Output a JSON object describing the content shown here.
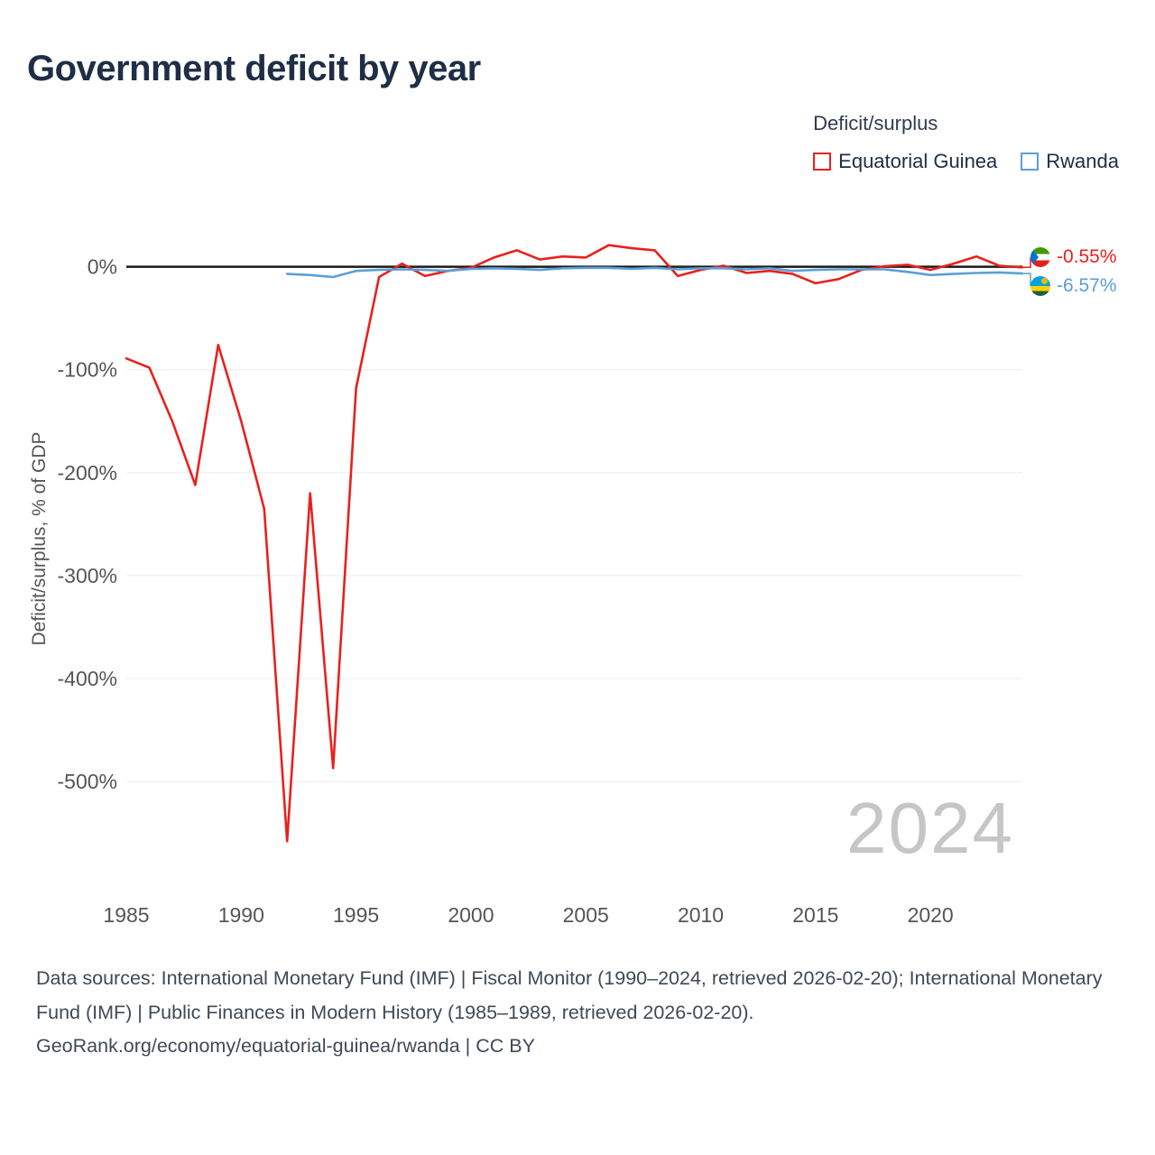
{
  "header": {
    "title": "Government deficit by year"
  },
  "footer": {
    "sources": "Data sources: International Monetary Fund (IMF) | Fiscal Monitor (1990–2024, retrieved 2026-02-20); International Monetary Fund (IMF) | Public Finances in Modern History (1985–1989, retrieved 2026-02-20).",
    "attribution": "GeoRank.org/economy/equatorial-guinea/rwanda | CC BY"
  },
  "chart_data": {
    "type": "line",
    "title": "Government deficit by year",
    "xlabel": "",
    "ylabel": "Deficit/surplus, % of GDP",
    "legend_title": "Deficit/surplus",
    "legend_position": "top-right",
    "grid": "horizontal",
    "watermark": "2024",
    "zero_line_color": "#1a1a1a",
    "grid_color": "#ececec",
    "tick_color": "#555555",
    "xlim": [
      1985,
      2024
    ],
    "ylim": [
      -620,
      40
    ],
    "x_ticks": [
      1985,
      1990,
      1995,
      2000,
      2005,
      2010,
      2015,
      2020
    ],
    "y_ticks": [
      {
        "value": 0,
        "label": "0%"
      },
      {
        "value": -100,
        "label": "-100%"
      },
      {
        "value": -200,
        "label": "-200%"
      },
      {
        "value": -300,
        "label": "-300%"
      },
      {
        "value": -400,
        "label": "-400%"
      },
      {
        "value": -500,
        "label": "-500%"
      }
    ],
    "series": [
      {
        "name": "Equatorial Guinea",
        "color": "#e8211d",
        "end_label": "-0.55%",
        "label_side": "above",
        "flag": "equatorial-guinea-flag",
        "x": [
          1985,
          1986,
          1987,
          1988,
          1989,
          1990,
          1991,
          1992,
          1993,
          1994,
          1995,
          1996,
          1997,
          1998,
          1999,
          2000,
          2001,
          2002,
          2003,
          2004,
          2005,
          2006,
          2007,
          2008,
          2009,
          2010,
          2011,
          2012,
          2013,
          2014,
          2015,
          2016,
          2017,
          2018,
          2019,
          2020,
          2021,
          2022,
          2023,
          2024
        ],
        "values": [
          -89,
          -98,
          -150,
          -212,
          -76,
          -150,
          -235,
          -558,
          -220,
          -487,
          -118,
          -10,
          3,
          -9,
          -4,
          -1,
          9,
          16,
          7,
          10,
          9,
          21,
          18,
          16,
          -9,
          -3,
          1,
          -6,
          -4,
          -7,
          -16,
          -12,
          -3,
          0.5,
          2,
          -3,
          3,
          10,
          1,
          -0.55
        ]
      },
      {
        "name": "Rwanda",
        "color": "#5b9fd6",
        "end_label": "-6.57%",
        "label_side": "below",
        "flag": "rwanda-flag",
        "x": [
          1992,
          1993,
          1994,
          1995,
          1996,
          1997,
          1998,
          1999,
          2000,
          2001,
          2002,
          2003,
          2004,
          2005,
          2006,
          2007,
          2008,
          2009,
          2010,
          2011,
          2012,
          2013,
          2014,
          2015,
          2016,
          2017,
          2018,
          2019,
          2020,
          2021,
          2022,
          2023,
          2024
        ],
        "values": [
          -7,
          -8,
          -10,
          -4,
          -3,
          -2.5,
          -3,
          -4,
          -2,
          -1.5,
          -2,
          -3,
          -1.5,
          -1,
          -1,
          -2,
          -1,
          -2.5,
          -1.5,
          -1.5,
          -2.5,
          -1.5,
          -4,
          -3,
          -2.5,
          -2.5,
          -2.5,
          -5,
          -8,
          -7,
          -6,
          -5.5,
          -6.57
        ]
      }
    ]
  }
}
